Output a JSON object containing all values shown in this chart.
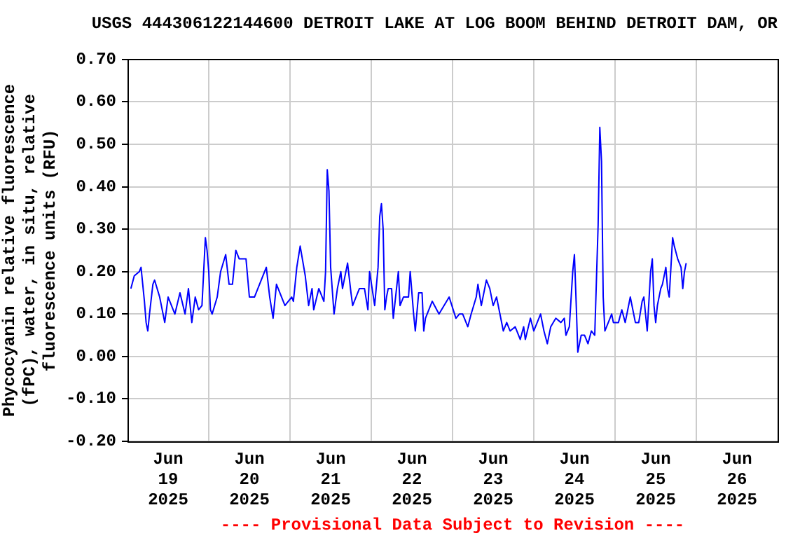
{
  "chart_data": {
    "type": "line",
    "title": "USGS 444306122144600 DETROIT LAKE AT LOG BOOM BEHIND DETROIT DAM, OR",
    "ylabel": "Phycocyanin relative fluorescence (fPC), water, in situ, relative fluorescence units (RFU)",
    "annotations": [
      "---- Provisional Data Subject to Revision ----"
    ],
    "grid": true,
    "xlim": [
      "2025-06-19T00:00",
      "2025-06-27T00:00"
    ],
    "xticks": [
      {
        "value": "2025-06-19T12:00",
        "label": "Jun 19 2025"
      },
      {
        "value": "2025-06-20T12:00",
        "label": "Jun 20 2025"
      },
      {
        "value": "2025-06-21T12:00",
        "label": "Jun 21 2025"
      },
      {
        "value": "2025-06-22T12:00",
        "label": "Jun 22 2025"
      },
      {
        "value": "2025-06-23T12:00",
        "label": "Jun 23 2025"
      },
      {
        "value": "2025-06-24T12:00",
        "label": "Jun 24 2025"
      },
      {
        "value": "2025-06-25T12:00",
        "label": "Jun 25 2025"
      },
      {
        "value": "2025-06-26T12:00",
        "label": "Jun 26 2025"
      },
      {
        "value": "2025-06-20T00:00",
        "label": null
      },
      {
        "value": "2025-06-21T00:00",
        "label": null
      },
      {
        "value": "2025-06-22T00:00",
        "label": null
      },
      {
        "value": "2025-06-23T00:00",
        "label": null
      },
      {
        "value": "2025-06-24T00:00",
        "label": null
      },
      {
        "value": "2025-06-25T00:00",
        "label": null
      },
      {
        "value": "2025-06-26T00:00",
        "label": null
      }
    ],
    "ylim": [
      -0.2,
      0.7
    ],
    "yticks": [
      {
        "value": -0.2,
        "label": "-0.20"
      },
      {
        "value": -0.1,
        "label": "-0.10"
      },
      {
        "value": 0,
        "label": "0.00"
      },
      {
        "value": 0.1,
        "label": "0.10"
      },
      {
        "value": 0.2,
        "label": "0.20"
      },
      {
        "value": 0.3,
        "label": "0.30"
      },
      {
        "value": 0.4,
        "label": "0.40"
      },
      {
        "value": 0.5,
        "label": "0.50"
      },
      {
        "value": 0.6,
        "label": "0.60"
      },
      {
        "value": 0.7,
        "label": "0.70"
      }
    ],
    "x": [
      "2025-06-19T01:00",
      "2025-06-19T02:00",
      "2025-06-19T03:30",
      "2025-06-19T04:00",
      "2025-06-19T04:30",
      "2025-06-19T05:00",
      "2025-06-19T05:30",
      "2025-06-19T06:00",
      "2025-06-19T06:30",
      "2025-06-19T07:30",
      "2025-06-19T08:00",
      "2025-06-19T09:30",
      "2025-06-19T11:00",
      "2025-06-19T12:00",
      "2025-06-19T14:00",
      "2025-06-19T15:30",
      "2025-06-19T17:00",
      "2025-06-19T18:00",
      "2025-06-19T19:00",
      "2025-06-19T20:00",
      "2025-06-19T21:00",
      "2025-06-19T22:00",
      "2025-06-19T23:00",
      "2025-06-19T23:30",
      "2025-06-20T00:00",
      "2025-06-20T00:30",
      "2025-06-20T01:00",
      "2025-06-20T02:30",
      "2025-06-20T03:30",
      "2025-06-20T05:00",
      "2025-06-20T06:00",
      "2025-06-20T07:00",
      "2025-06-20T08:00",
      "2025-06-20T09:00",
      "2025-06-20T11:00",
      "2025-06-20T12:00",
      "2025-06-20T13:30",
      "2025-06-20T15:00",
      "2025-06-20T17:00",
      "2025-06-20T18:00",
      "2025-06-20T19:00",
      "2025-06-20T20:00",
      "2025-06-20T22:30",
      "2025-06-21T00:30",
      "2025-06-21T01:00",
      "2025-06-21T02:00",
      "2025-06-21T03:00",
      "2025-06-21T04:30",
      "2025-06-21T05:30",
      "2025-06-21T06:30",
      "2025-06-21T07:00",
      "2025-06-21T08:30",
      "2025-06-21T10:00",
      "2025-06-21T10:30",
      "2025-06-21T11:00",
      "2025-06-21T11:30",
      "2025-06-21T12:00",
      "2025-06-21T13:00",
      "2025-06-21T14:00",
      "2025-06-21T15:00",
      "2025-06-21T15:30",
      "2025-06-21T17:00",
      "2025-06-21T18:00",
      "2025-06-21T18:30",
      "2025-06-21T20:30",
      "2025-06-21T22:00",
      "2025-06-21T23:00",
      "2025-06-21T23:30",
      "2025-06-22T01:00",
      "2025-06-22T02:00",
      "2025-06-22T02:30",
      "2025-06-22T03:00",
      "2025-06-22T03:30",
      "2025-06-22T04:00",
      "2025-06-22T04:30",
      "2025-06-22T05:00",
      "2025-06-22T06:00",
      "2025-06-22T06:30",
      "2025-06-22T08:00",
      "2025-06-22T08:30",
      "2025-06-22T09:30",
      "2025-06-22T11:00",
      "2025-06-22T11:30",
      "2025-06-22T12:30",
      "2025-06-22T13:00",
      "2025-06-22T14:00",
      "2025-06-22T15:00",
      "2025-06-22T15:30",
      "2025-06-22T16:00",
      "2025-06-22T18:00",
      "2025-06-22T20:00",
      "2025-06-22T23:00",
      "2025-06-23T01:00",
      "2025-06-23T02:00",
      "2025-06-23T03:00",
      "2025-06-23T04:30",
      "2025-06-23T05:30",
      "2025-06-23T07:00",
      "2025-06-23T07:30",
      "2025-06-23T08:30",
      "2025-06-23T10:00",
      "2025-06-23T11:00",
      "2025-06-23T12:00",
      "2025-06-23T13:00",
      "2025-06-23T14:00",
      "2025-06-23T15:00",
      "2025-06-23T16:00",
      "2025-06-23T17:00",
      "2025-06-23T18:30",
      "2025-06-23T20:00",
      "2025-06-23T21:00",
      "2025-06-23T21:30",
      "2025-06-23T23:00",
      "2025-06-24T00:00",
      "2025-06-24T02:00",
      "2025-06-24T03:00",
      "2025-06-24T04:00",
      "2025-06-24T05:00",
      "2025-06-24T06:30",
      "2025-06-24T08:00",
      "2025-06-24T09:00",
      "2025-06-24T09:30",
      "2025-06-24T10:30",
      "2025-06-24T11:30",
      "2025-06-24T12:00",
      "2025-06-24T12:30",
      "2025-06-24T13:00",
      "2025-06-24T14:00",
      "2025-06-24T15:00",
      "2025-06-24T16:00",
      "2025-06-24T17:00",
      "2025-06-24T18:00",
      "2025-06-24T18:30",
      "2025-06-24T19:00",
      "2025-06-24T19:30",
      "2025-06-24T20:00",
      "2025-06-24T20:30",
      "2025-06-24T21:00",
      "2025-06-24T23:00",
      "2025-06-24T23:30",
      "2025-06-25T01:00",
      "2025-06-25T02:00",
      "2025-06-25T03:00",
      "2025-06-25T04:30",
      "2025-06-25T06:00",
      "2025-06-25T07:00",
      "2025-06-25T08:00",
      "2025-06-25T08:30",
      "2025-06-25T09:30",
      "2025-06-25T10:30",
      "2025-06-25T11:00",
      "2025-06-25T11:30",
      "2025-06-25T12:00",
      "2025-06-25T12:30",
      "2025-06-25T13:30",
      "2025-06-25T14:00",
      "2025-06-25T15:00",
      "2025-06-25T15:30",
      "2025-06-25T16:00",
      "2025-06-25T16:30",
      "2025-06-25T17:00",
      "2025-06-25T17:30",
      "2025-06-25T18:30",
      "2025-06-25T19:30",
      "2025-06-25T20:00",
      "2025-06-25T20:30",
      "2025-06-25T21:00"
    ],
    "series": [
      {
        "color": "#0000ff",
        "values": [
          0.16,
          0.19,
          0.2,
          0.21,
          0.17,
          0.13,
          0.08,
          0.06,
          0.1,
          0.17,
          0.18,
          0.14,
          0.08,
          0.14,
          0.1,
          0.15,
          0.1,
          0.16,
          0.08,
          0.14,
          0.11,
          0.12,
          0.28,
          0.25,
          0.2,
          0.11,
          0.1,
          0.14,
          0.2,
          0.24,
          0.17,
          0.17,
          0.25,
          0.23,
          0.23,
          0.14,
          0.14,
          0.17,
          0.21,
          0.14,
          0.09,
          0.17,
          0.12,
          0.14,
          0.13,
          0.21,
          0.26,
          0.19,
          0.12,
          0.16,
          0.11,
          0.16,
          0.13,
          0.2,
          0.44,
          0.39,
          0.21,
          0.1,
          0.16,
          0.2,
          0.16,
          0.22,
          0.15,
          0.12,
          0.16,
          0.16,
          0.11,
          0.2,
          0.12,
          0.21,
          0.33,
          0.36,
          0.3,
          0.11,
          0.14,
          0.16,
          0.16,
          0.09,
          0.2,
          0.12,
          0.14,
          0.14,
          0.2,
          0.1,
          0.06,
          0.15,
          0.15,
          0.06,
          0.09,
          0.13,
          0.1,
          0.14,
          0.09,
          0.1,
          0.1,
          0.07,
          0.1,
          0.14,
          0.17,
          0.12,
          0.18,
          0.16,
          0.12,
          0.14,
          0.1,
          0.06,
          0.08,
          0.06,
          0.07,
          0.04,
          0.07,
          0.04,
          0.09,
          0.06,
          0.1,
          0.06,
          0.03,
          0.07,
          0.09,
          0.08,
          0.09,
          0.05,
          0.07,
          0.2,
          0.24,
          0.13,
          0.01,
          0.05,
          0.05,
          0.03,
          0.06,
          0.05,
          0.18,
          0.31,
          0.54,
          0.46,
          0.14,
          0.06,
          0.1,
          0.08,
          0.08,
          0.11,
          0.08,
          0.14,
          0.08,
          0.08,
          0.13,
          0.14,
          0.06,
          0.2,
          0.23,
          0.12,
          0.08,
          0.12,
          0.16,
          0.17,
          0.21,
          0.16,
          0.14,
          0.21,
          0.28,
          0.26,
          0.23,
          0.21,
          0.16,
          0.2,
          0.22
        ]
      }
    ]
  }
}
